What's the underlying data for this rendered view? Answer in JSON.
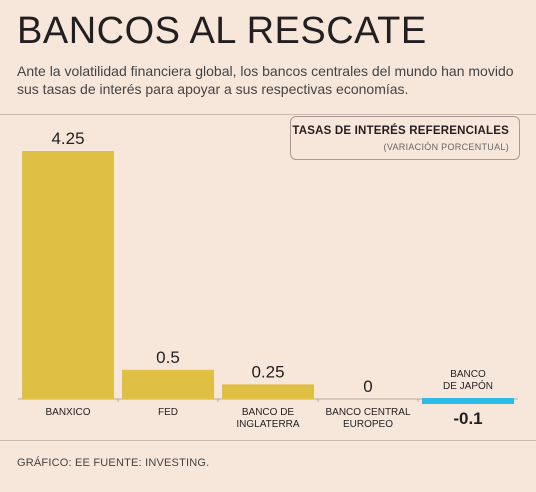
{
  "header": {
    "title": "BANCOS AL RESCATE",
    "subtitle": "Ante la volatilidad financiera global, los bancos centrales del mundo han movido sus tasas de interés para apoyar a sus respectivas economías."
  },
  "legend": {
    "title": "TASAS DE INTERÉS REFERENCIALES",
    "subtitle": "(VARIACIÓN PORCENTUAL)"
  },
  "footer": {
    "source": "GRÁFICO: EE FUENTE: INVESTING."
  },
  "colors": {
    "positive_bar": "#dfbf44",
    "negative_bar": "#2bbbe6",
    "background": "#f7e6da"
  },
  "chart_data": {
    "type": "bar",
    "title": "TASAS DE INTERÉS REFERENCIALES",
    "subtitle": "(VARIACIÓN PORCENTUAL)",
    "categories": [
      [
        "BANXICO"
      ],
      [
        "FED"
      ],
      [
        "BANCO DE",
        "INGLATERRA"
      ],
      [
        "BANCO CENTRAL",
        "EUROPEO"
      ],
      [
        "BANCO",
        "DE JAPÓN"
      ]
    ],
    "values": [
      4.25,
      0.5,
      0.25,
      0,
      -0.1
    ],
    "value_labels": [
      "4.25",
      "0.5",
      "0.25",
      "0",
      "-0.1"
    ],
    "ylim": [
      -0.1,
      4.25
    ],
    "grid": false,
    "legend_position": "top-right"
  }
}
